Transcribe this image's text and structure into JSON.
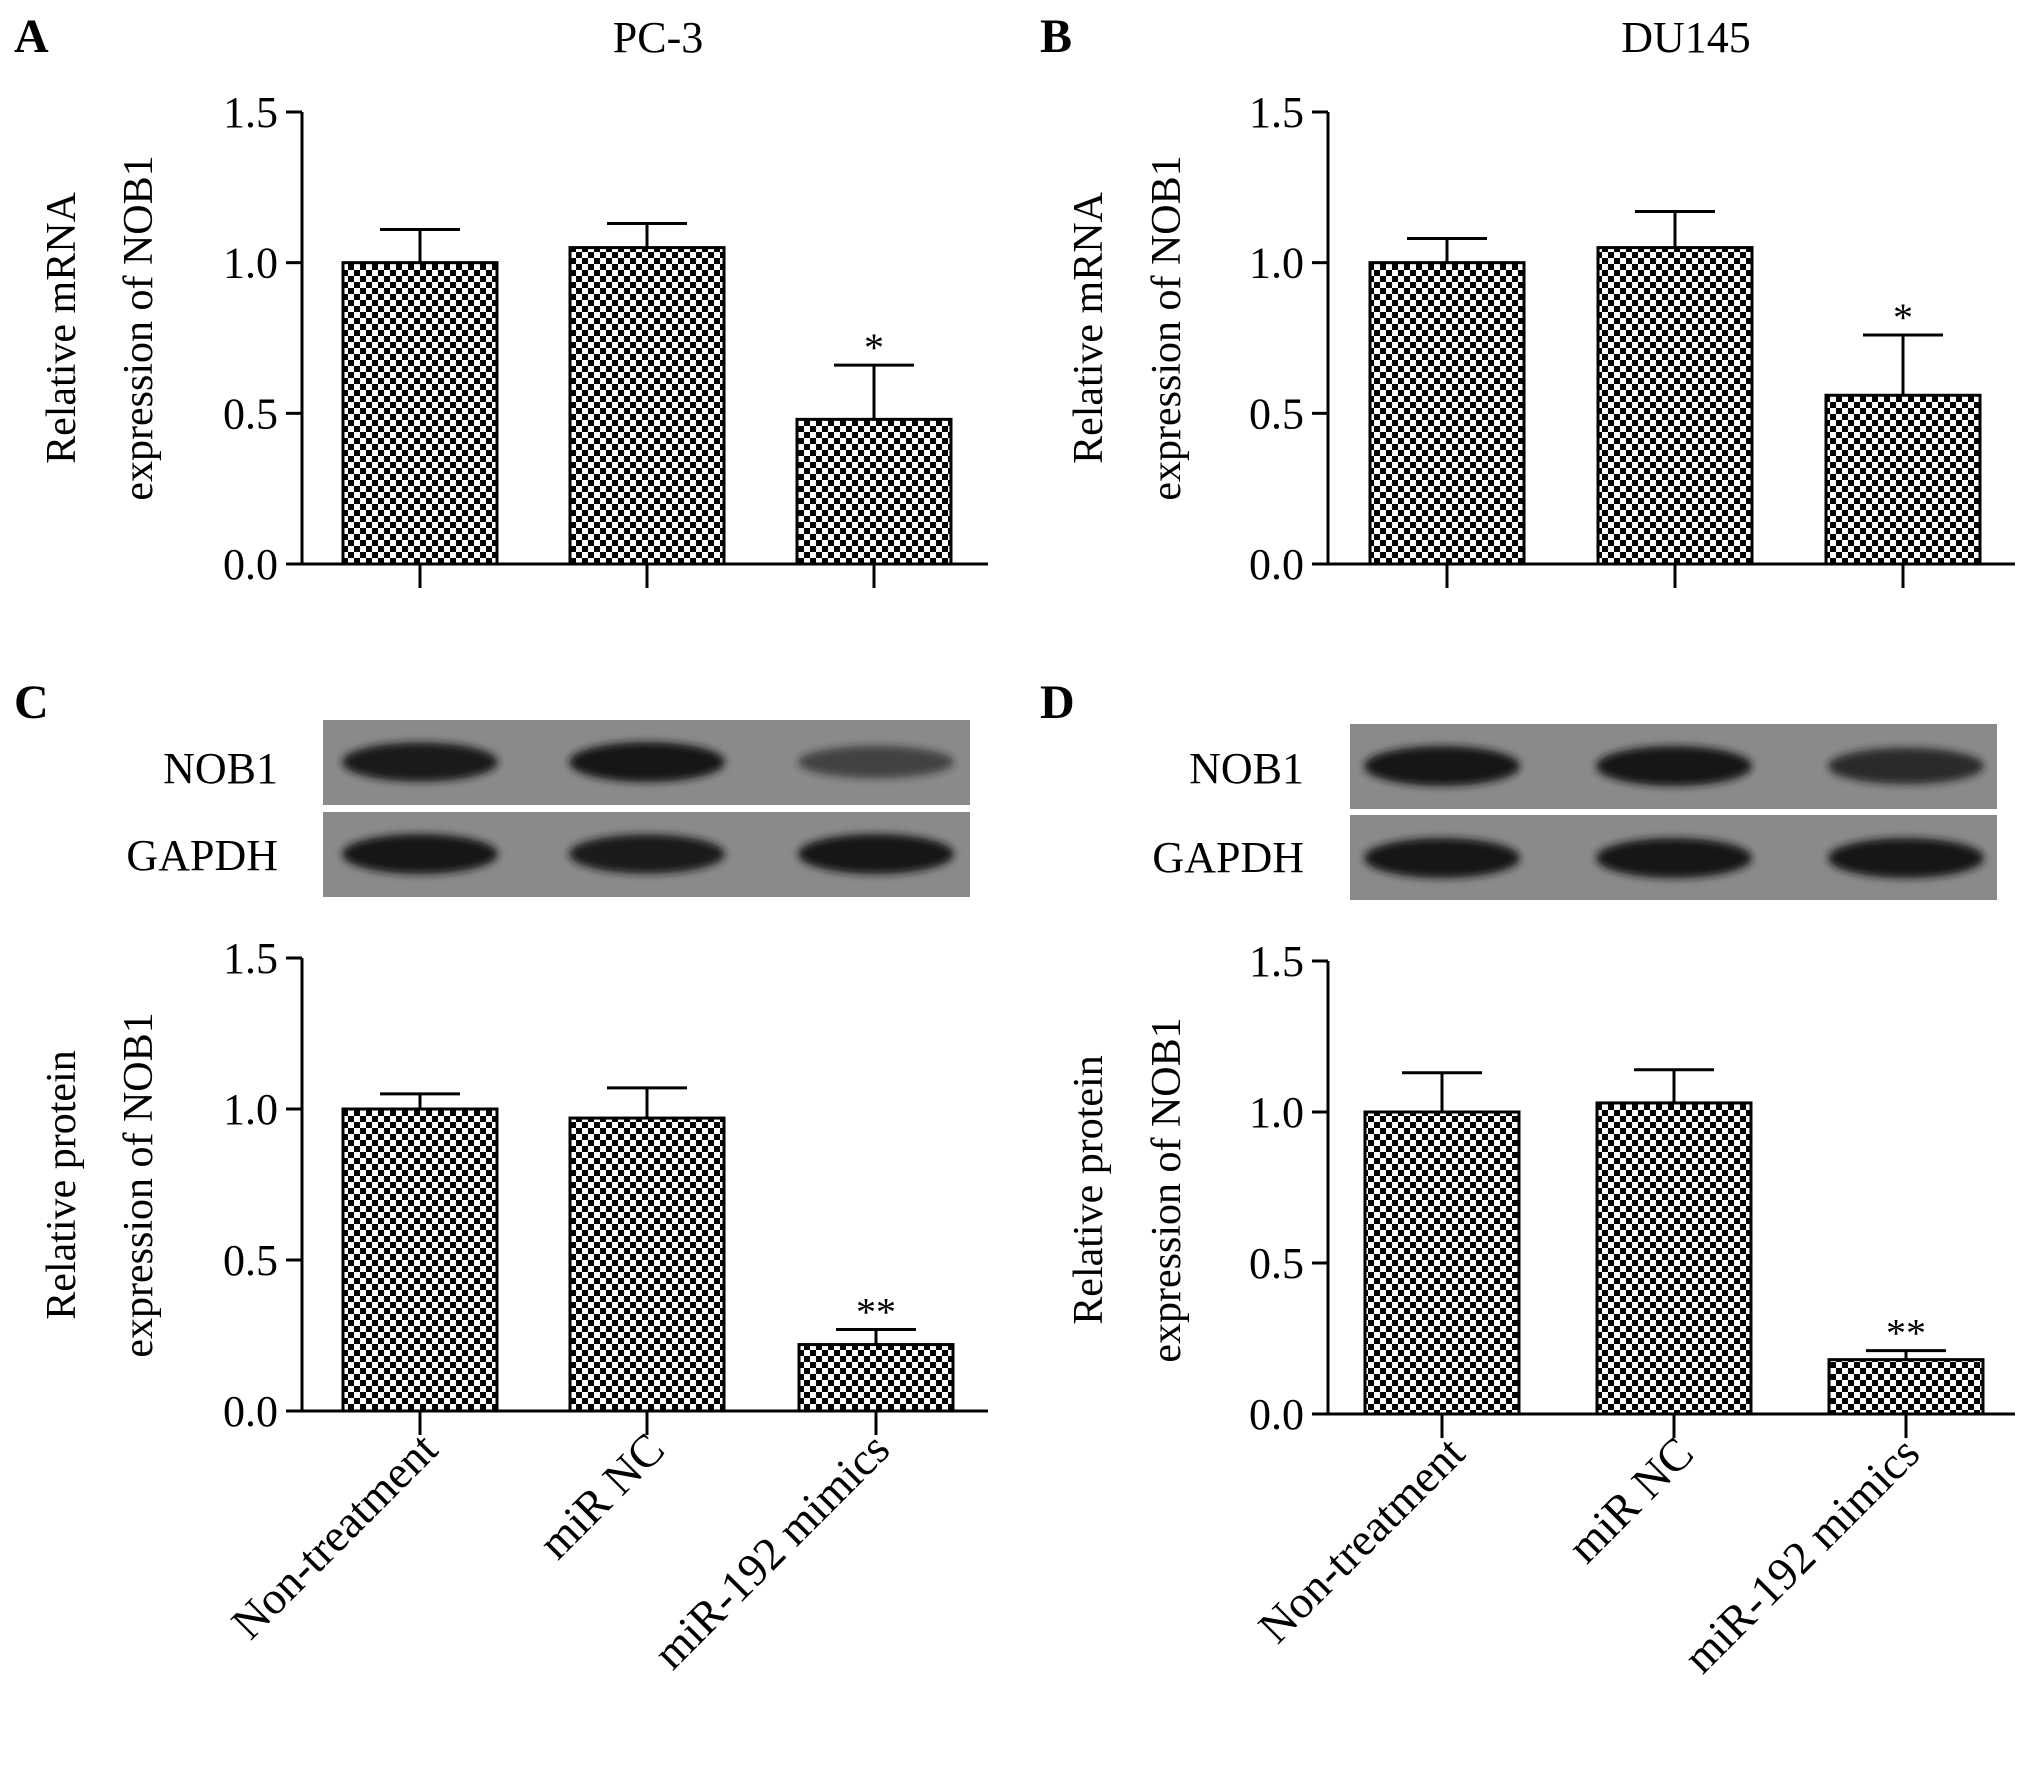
{
  "colors": {
    "ink": "#000000",
    "blot_background": "#8a8a8a",
    "band": "#141414"
  },
  "categories": [
    "Non-treatment",
    "miR NC",
    "miR-192 mimics"
  ],
  "chart_data": [
    {
      "type": "bar",
      "panel": "A",
      "title": "PC-3",
      "ylabel": [
        "Relative mRNA",
        "expression of NOB1"
      ],
      "ylim": [
        0,
        1.5
      ],
      "yticks": [
        "0.0",
        "0.5",
        "1.0",
        "1.5"
      ],
      "categories": [
        "Non-treatment",
        "miR NC",
        "miR-192 mimics"
      ],
      "values": [
        1.0,
        1.05,
        0.48
      ],
      "errors": [
        0.11,
        0.08,
        0.18
      ],
      "significance": [
        "",
        "",
        "*"
      ],
      "fill_pattern": "checkerboard"
    },
    {
      "type": "bar",
      "panel": "B",
      "title": "DU145",
      "ylabel": [
        "Relative mRNA",
        "expression of NOB1"
      ],
      "ylim": [
        0,
        1.5
      ],
      "yticks": [
        "0.0",
        "0.5",
        "1.0",
        "1.5"
      ],
      "categories": [
        "Non-treatment",
        "miR NC",
        "miR-192 mimics"
      ],
      "values": [
        1.0,
        1.05,
        0.56
      ],
      "errors": [
        0.08,
        0.12,
        0.2
      ],
      "significance": [
        "",
        "",
        "*"
      ],
      "fill_pattern": "checkerboard"
    },
    {
      "type": "bar",
      "panel": "C",
      "title": "",
      "ylabel": [
        "Relative protein",
        "expression of NOB1"
      ],
      "ylim": [
        0,
        1.5
      ],
      "yticks": [
        "0.0",
        "0.5",
        "1.0",
        "1.5"
      ],
      "categories": [
        "Non-treatment",
        "miR NC",
        "miR-192 mimics"
      ],
      "values": [
        1.0,
        0.97,
        0.22
      ],
      "errors": [
        0.05,
        0.1,
        0.05
      ],
      "significance": [
        "",
        "",
        "**"
      ],
      "fill_pattern": "checkerboard"
    },
    {
      "type": "bar",
      "panel": "D",
      "title": "",
      "ylabel": [
        "Relative protein",
        "expression of NOB1"
      ],
      "ylim": [
        0,
        1.5
      ],
      "yticks": [
        "0.0",
        "0.5",
        "1.0",
        "1.5"
      ],
      "categories": [
        "Non-treatment",
        "miR NC",
        "miR-192 mimics"
      ],
      "values": [
        1.0,
        1.03,
        0.18
      ],
      "errors": [
        0.13,
        0.11,
        0.03
      ],
      "significance": [
        "",
        "",
        "**"
      ],
      "fill_pattern": "checkerboard"
    }
  ],
  "blots": [
    {
      "panel": "C",
      "rows": [
        {
          "label": "NOB1",
          "band_intensity": [
            0.95,
            1.0,
            0.45
          ]
        },
        {
          "label": "GAPDH",
          "band_intensity": [
            1.0,
            0.95,
            1.0
          ]
        }
      ]
    },
    {
      "panel": "D",
      "rows": [
        {
          "label": "NOB1",
          "band_intensity": [
            1.0,
            1.0,
            0.75
          ]
        },
        {
          "label": "GAPDH",
          "band_intensity": [
            1.0,
            1.0,
            1.0
          ]
        }
      ]
    }
  ]
}
